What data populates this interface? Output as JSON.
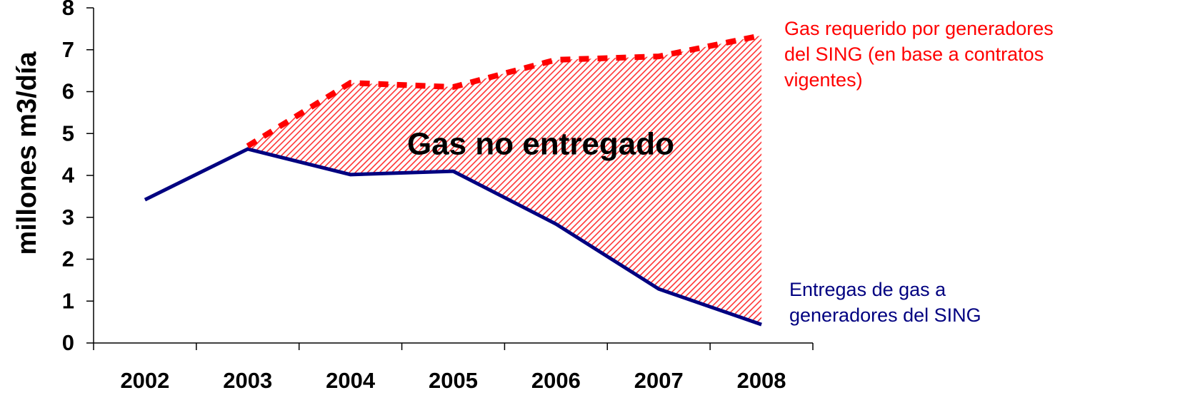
{
  "chart_data": {
    "type": "line",
    "ylabel": "millones m3/día",
    "categories": [
      "2002",
      "2003",
      "2004",
      "2005",
      "2006",
      "2007",
      "2008"
    ],
    "series": [
      {
        "name": "Entregas de gas a generadores del SING",
        "color": "#000080",
        "values": [
          3.42,
          4.63,
          4.02,
          4.1,
          2.84,
          1.29,
          0.44
        ]
      },
      {
        "name": "Gas requerido por generadores del SING (en base a contratos vigentes)",
        "color": "#ff0000",
        "values": [
          null,
          4.7,
          6.21,
          6.11,
          6.76,
          6.84,
          7.34
        ]
      }
    ],
    "legend_lines": [
      [
        "Entregas de gas a",
        "generadores del SING"
      ],
      [
        "Gas requerido por generadores",
        "del SING (en base a contratos",
        "vigentes)"
      ]
    ],
    "annotation": "Gas no entregado",
    "ylim": [
      0,
      8
    ],
    "yticks": [
      0,
      1,
      2,
      3,
      4,
      5,
      6,
      7,
      8
    ]
  }
}
